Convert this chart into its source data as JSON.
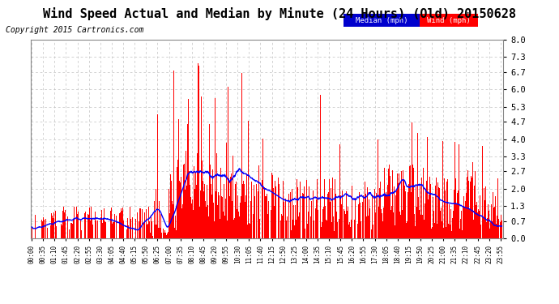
{
  "title": "Wind Speed Actual and Median by Minute (24 Hours) (Old) 20150628",
  "copyright": "Copyright 2015 Cartronics.com",
  "yticks": [
    0.0,
    0.7,
    1.3,
    2.0,
    2.7,
    3.3,
    4.0,
    4.7,
    5.3,
    6.0,
    6.7,
    7.3,
    8.0
  ],
  "ylim": [
    0.0,
    8.0
  ],
  "wind_color": "#FF0000",
  "median_color": "#0000FF",
  "background_color": "#FFFFFF",
  "grid_color": "#C0C0C0",
  "legend_median_bg": "#0000CD",
  "legend_wind_bg": "#FF0000",
  "title_fontsize": 11,
  "copyright_fontsize": 7,
  "num_minutes": 1440,
  "tick_interval_minutes": 35
}
